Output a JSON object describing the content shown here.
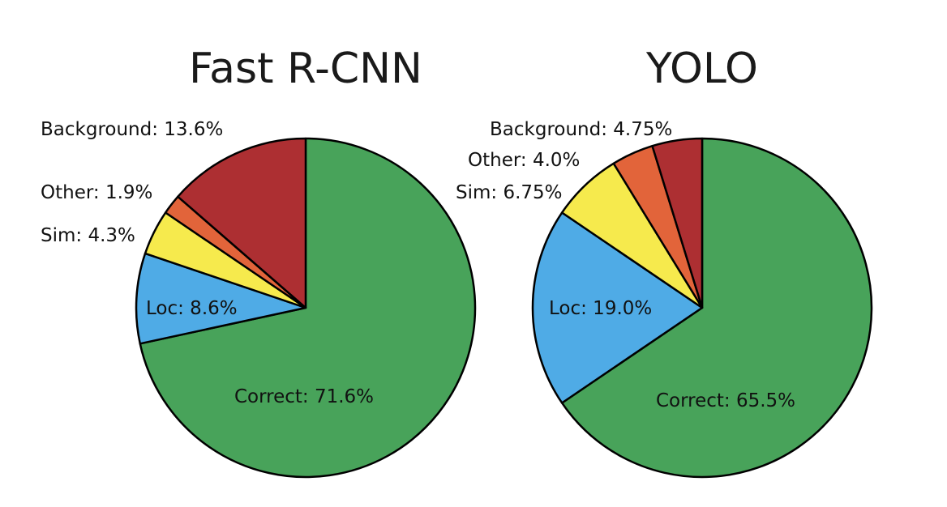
{
  "chart_data": [
    {
      "type": "pie",
      "title": "Fast R-CNN",
      "categories": [
        "Correct",
        "Loc",
        "Sim",
        "Other",
        "Background"
      ],
      "values": [
        71.6,
        8.6,
        4.3,
        1.9,
        13.6
      ],
      "labels": [
        "Correct: 71.6%",
        "Loc: 8.6%",
        "Sim: 4.3%",
        "Other: 1.9%",
        "Background: 13.6%"
      ],
      "colors": [
        "#48a35a",
        "#4fabe6",
        "#f6ea4d",
        "#e2643a",
        "#ad2f32"
      ],
      "start_angle": "12 o'clock",
      "direction": "clockwise",
      "legend": "none"
    },
    {
      "type": "pie",
      "title": "YOLO",
      "categories": [
        "Correct",
        "Loc",
        "Sim",
        "Other",
        "Background"
      ],
      "values": [
        65.5,
        19.0,
        6.75,
        4.0,
        4.75
      ],
      "labels": [
        "Correct: 65.5%",
        "Loc: 19.0%",
        "Sim: 6.75%",
        "Other: 4.0%",
        "Background: 4.75%"
      ],
      "colors": [
        "#48a35a",
        "#4fabe6",
        "#f6ea4d",
        "#e2643a",
        "#ad2f32"
      ],
      "start_angle": "12 o'clock",
      "direction": "clockwise",
      "legend": "none"
    }
  ]
}
